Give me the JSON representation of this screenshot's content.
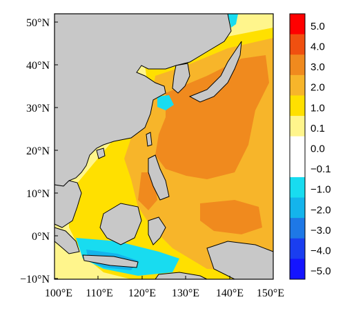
{
  "map": {
    "x_ticks": [
      "100°E",
      "110°E",
      "120°E",
      "130°E",
      "140°E",
      "150°E"
    ],
    "y_ticks": [
      "50°N",
      "40°N",
      "30°N",
      "20°N",
      "10°N",
      "0°N",
      "−10°N"
    ],
    "land_color": "#c8c8c8",
    "coast_color": "#000000",
    "extent": {
      "lon": [
        100,
        150
      ],
      "lat": [
        -10,
        52
      ]
    }
  },
  "colorbar": {
    "labels": [
      "5.0",
      "4.0",
      "3.0",
      "2.0",
      "1.0",
      "0.1",
      "0.0",
      "−0.1",
      "−1.0",
      "−2.0",
      "−3.0",
      "−4.0",
      "−5.0"
    ],
    "colors": [
      "#ff0000",
      "#f05010",
      "#f08a1e",
      "#f7b52a",
      "#ffe000",
      "#fff58c",
      "#ffffff",
      "#ffffff",
      "#18dcf0",
      "#14b4ec",
      "#1e78e6",
      "#1a3ef0",
      "#1414ff"
    ]
  },
  "chart_data": {
    "type": "heatmap",
    "x_range_deg_e": [
      100,
      150
    ],
    "y_range_deg_n": [
      -10,
      52
    ],
    "colorbar_levels": [
      5.0,
      4.0,
      3.0,
      2.0,
      1.0,
      0.1,
      0.0,
      -0.1,
      -1.0,
      -2.0,
      -3.0,
      -4.0,
      -5.0
    ]
  }
}
